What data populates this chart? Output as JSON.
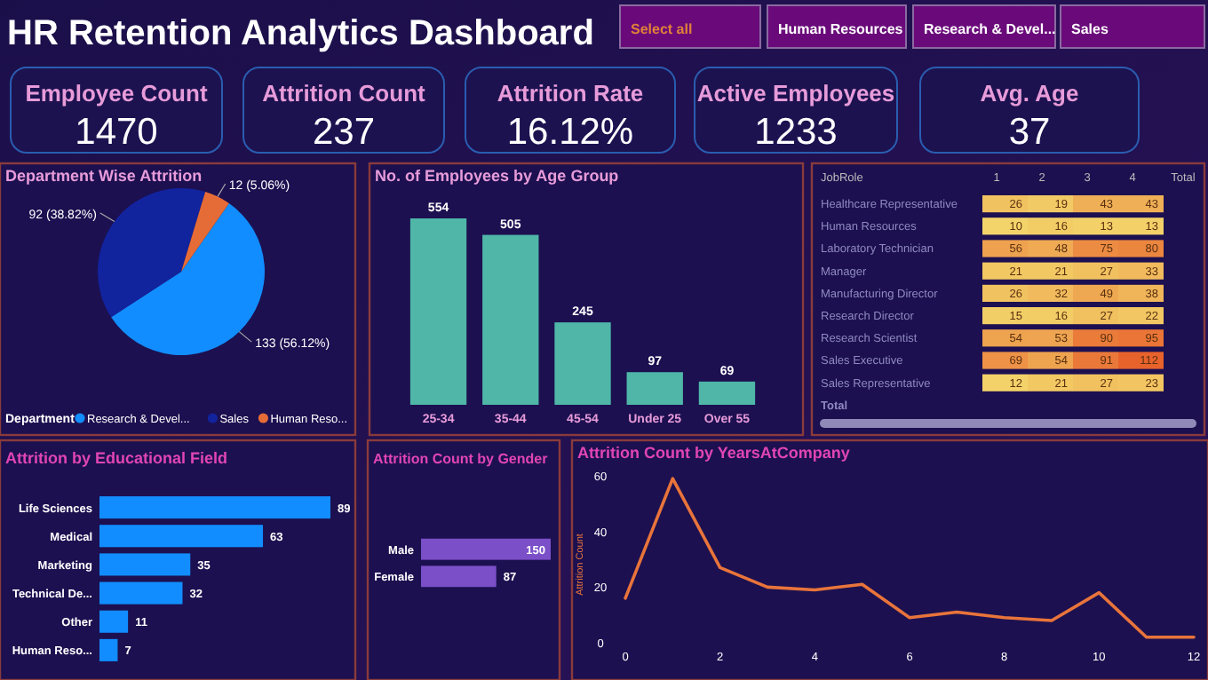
{
  "chart_data": [
    {
      "type": "other",
      "title": "HR Retention Analytics Dashboard",
      "categories": [
        "Employee Count",
        "Attrition Count",
        "Attrition Rate",
        "Active Employees",
        "Avg. Age"
      ],
      "value_labels": [
        "1470",
        "237",
        "16.12%",
        "1233",
        "37"
      ],
      "annotations": [
        "Select all",
        "Human Resources",
        "Research & Devel...",
        "Sales"
      ]
    },
    {
      "type": "pie",
      "title": "Department Wise Attrition",
      "categories": [
        "Research & Devel...",
        "Sales",
        "Human Reso..."
      ],
      "values": [
        133,
        92,
        12
      ],
      "value_labels": [
        "133 (56.12%)",
        "92 (38.82%)",
        "12 (5.06%)"
      ],
      "colors": [
        "#118dff",
        "#12239e",
        "#e66c37"
      ],
      "legend_title": "Department",
      "legend": "bottom"
    },
    {
      "type": "bar",
      "title": "No. of Employees by Age Group",
      "categories": [
        "25-34",
        "35-44",
        "45-54",
        "Under 25",
        "Over 55"
      ],
      "values": [
        554,
        505,
        245,
        97,
        69
      ],
      "color": "#4fb6a8",
      "data_labels": true
    },
    {
      "type": "heatmap",
      "ylabel": "JobRole",
      "data_labels": true,
      "categories": [
        "1",
        "2",
        "3",
        "4",
        "Total"
      ],
      "y_categories": [
        "Healthcare Representative",
        "Human Resources",
        "Laboratory Technician",
        "Manager",
        "Manufacturing Director",
        "Research Director",
        "Research Scientist",
        "Sales Executive",
        "Sales Representative",
        "Total"
      ],
      "cells": [
        [
          26,
          19,
          43,
          43,
          null
        ],
        [
          10,
          16,
          13,
          13,
          null
        ],
        [
          56,
          48,
          75,
          80,
          null
        ],
        [
          21,
          21,
          27,
          33,
          null
        ],
        [
          26,
          32,
          49,
          38,
          null
        ],
        [
          15,
          16,
          27,
          22,
          null
        ],
        [
          54,
          53,
          90,
          95,
          null
        ],
        [
          69,
          54,
          91,
          112,
          null
        ],
        [
          12,
          21,
          27,
          23,
          null
        ],
        [
          null,
          null,
          null,
          null,
          null
        ]
      ]
    },
    {
      "type": "bar",
      "orientation": "horizontal",
      "title": "Attrition by Educational Field",
      "categories": [
        "Life Sciences",
        "Medical",
        "Marketing",
        "Technical De...",
        "Other",
        "Human Reso..."
      ],
      "values": [
        89,
        63,
        35,
        32,
        11,
        7
      ],
      "color": "#118dff",
      "data_labels": true
    },
    {
      "type": "bar",
      "orientation": "horizontal",
      "title": "Attrition Count by Gender",
      "categories": [
        "Male",
        "Female"
      ],
      "values": [
        150,
        87
      ],
      "color": "#7b4fc8",
      "data_labels": true
    },
    {
      "type": "line",
      "title": "Attrition Count by YearsAtCompany",
      "ylabel": "Attrition Count",
      "x": [
        0,
        1,
        2,
        3,
        4,
        5,
        6,
        7,
        8,
        9,
        10,
        11,
        12
      ],
      "series": [
        {
          "color": "#e8743b",
          "values": [
            16,
            59,
            27,
            20,
            19,
            21,
            9,
            11,
            9,
            8,
            18,
            2,
            2
          ]
        }
      ],
      "xlim": [
        0,
        12
      ],
      "xticks": [
        0,
        2,
        4,
        6,
        8,
        10,
        12
      ],
      "ylim": [
        0,
        60
      ],
      "yticks": [
        0,
        20,
        40,
        60
      ]
    }
  ]
}
